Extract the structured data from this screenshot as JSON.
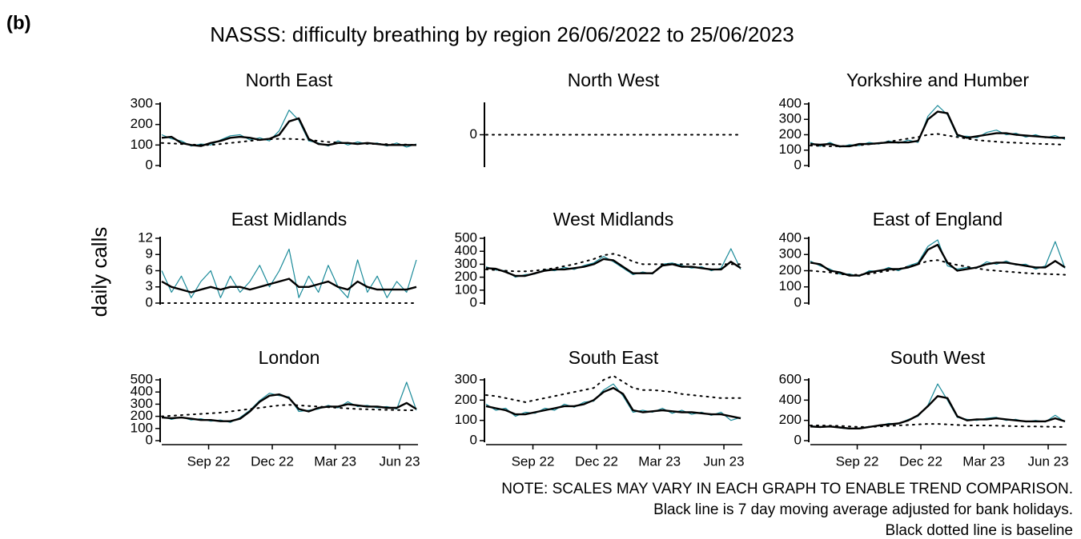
{
  "label": "(b)",
  "chart_data": {
    "type": "line",
    "title": "NASSS: difficulty breathing by region 26/06/2022 to 25/06/2023",
    "y_label": "daily calls",
    "x": [
      0,
      14,
      28,
      42,
      56,
      70,
      84,
      98,
      112,
      126,
      140,
      154,
      168,
      182,
      196,
      210,
      224,
      238,
      252,
      266,
      280,
      294,
      308,
      322,
      336,
      350,
      364
    ],
    "xlim": [
      0,
      364
    ],
    "xticks": [
      {
        "value": 67,
        "label": "Sep 22"
      },
      {
        "value": 158,
        "label": "Dec 22"
      },
      {
        "value": 248,
        "label": "Mar 23"
      },
      {
        "value": 340,
        "label": "Jun 23"
      }
    ],
    "panels": [
      {
        "title": "North East",
        "ylim": [
          0,
          300
        ],
        "yticks": [
          0,
          100,
          200,
          300
        ],
        "series": [
          {
            "color": "#1a8a99",
            "line_width": 1.2,
            "values": [
              150,
              130,
              120,
              95,
              105,
              100,
              125,
              145,
              150,
              125,
              135,
              120,
              170,
              270,
              220,
              120,
              110,
              95,
              120,
              100,
              115,
              105,
              110,
              95,
              110,
              90,
              105
            ]
          },
          {
            "color": "#000000",
            "line_width": 2.4,
            "values": [
              135,
              140,
              110,
              100,
              95,
              110,
              120,
              135,
              140,
              135,
              125,
              130,
              150,
              215,
              230,
              130,
              105,
              100,
              110,
              110,
              105,
              110,
              105,
              100,
              100,
              100,
              100
            ]
          },
          {
            "color": "#000000",
            "line_width": 2,
            "dashed": true,
            "values": [
              110,
              108,
              105,
              102,
              100,
              100,
              105,
              110,
              115,
              120,
              125,
              128,
              130,
              130,
              128,
              125,
              120,
              115,
              112,
              110,
              108,
              106,
              105,
              104,
              103,
              102,
              100
            ]
          }
        ]
      },
      {
        "title": "North West",
        "ylim": [
          -1,
          1
        ],
        "yticks": [
          0
        ],
        "series": [
          {
            "color": "#000000",
            "line_width": 2,
            "dashed": true,
            "values": [
              0,
              0,
              0,
              0,
              0,
              0,
              0,
              0,
              0,
              0,
              0,
              0,
              0,
              0,
              0,
              0,
              0,
              0,
              0,
              0,
              0,
              0,
              0,
              0,
              0,
              0,
              0
            ]
          }
        ]
      },
      {
        "title": "Yorkshire and Humber",
        "ylim": [
          0,
          400
        ],
        "yticks": [
          0,
          100,
          200,
          300,
          400
        ],
        "series": [
          {
            "color": "#1a8a99",
            "line_width": 1.2,
            "values": [
              150,
              125,
              150,
              120,
              135,
              130,
              150,
              140,
              160,
              145,
              165,
              150,
              320,
              390,
              330,
              190,
              190,
              180,
              215,
              230,
              200,
              210,
              185,
              200,
              180,
              195,
              170
            ]
          },
          {
            "color": "#000000",
            "line_width": 2.4,
            "values": [
              140,
              135,
              140,
              125,
              125,
              140,
              140,
              145,
              150,
              150,
              150,
              160,
              300,
              350,
              340,
              200,
              180,
              190,
              200,
              210,
              210,
              200,
              195,
              190,
              185,
              180,
              180
            ]
          },
          {
            "color": "#000000",
            "line_width": 2,
            "dashed": true,
            "values": [
              130,
              128,
              125,
              125,
              128,
              132,
              138,
              145,
              155,
              165,
              175,
              185,
              200,
              205,
              195,
              185,
              175,
              165,
              160,
              155,
              150,
              148,
              145,
              142,
              140,
              138,
              135
            ]
          }
        ]
      },
      {
        "title": "East Midlands",
        "ylim": [
          0,
          12
        ],
        "yticks": [
          0,
          3,
          6,
          9,
          12
        ],
        "series": [
          {
            "color": "#1a8a99",
            "line_width": 1.2,
            "values": [
              6,
              2,
              5,
              1,
              4,
              6,
              1,
              5,
              2,
              4,
              7,
              3,
              6,
              10,
              1,
              5,
              2,
              7,
              3,
              1,
              8,
              2,
              5,
              1,
              4,
              2,
              8
            ]
          },
          {
            "color": "#000000",
            "line_width": 2.4,
            "values": [
              4,
              3,
              2.5,
              2,
              2.5,
              3,
              2.5,
              3,
              3,
              2.5,
              3,
              3.5,
              4,
              4.5,
              3,
              3,
              3.5,
              4,
              3,
              2.5,
              4,
              3,
              2.5,
              2.5,
              2.5,
              2.5,
              3
            ]
          },
          {
            "color": "#000000",
            "line_width": 2,
            "dashed": true,
            "values": [
              0,
              0,
              0,
              0,
              0,
              0,
              0,
              0,
              0,
              0,
              0,
              0,
              0,
              0,
              0,
              0,
              0,
              0,
              0,
              0,
              0,
              0,
              0,
              0,
              0,
              0,
              0
            ]
          }
        ]
      },
      {
        "title": "West Midlands",
        "ylim": [
          0,
          500
        ],
        "yticks": [
          0,
          100,
          200,
          300,
          400,
          500
        ],
        "series": [
          {
            "color": "#1a8a99",
            "line_width": 1.2,
            "values": [
              280,
              255,
              250,
              200,
              220,
              225,
              260,
              250,
              275,
              260,
              290,
              310,
              360,
              320,
              270,
              220,
              240,
              225,
              300,
              310,
              290,
              270,
              280,
              250,
              270,
              420,
              260
            ]
          },
          {
            "color": "#000000",
            "line_width": 2.4,
            "values": [
              270,
              265,
              240,
              210,
              210,
              230,
              250,
              260,
              260,
              270,
              280,
              300,
              340,
              330,
              280,
              230,
              230,
              230,
              290,
              300,
              280,
              280,
              270,
              260,
              260,
              320,
              270
            ]
          },
          {
            "color": "#000000",
            "line_width": 2,
            "dashed": true,
            "values": [
              260,
              255,
              250,
              245,
              245,
              250,
              260,
              270,
              285,
              300,
              320,
              340,
              370,
              380,
              360,
              320,
              300,
              300,
              300,
              300,
              300,
              300,
              300,
              300,
              300,
              300,
              300
            ]
          }
        ]
      },
      {
        "title": "East of England",
        "ylim": [
          0,
          400
        ],
        "yticks": [
          0,
          100,
          200,
          300,
          400
        ],
        "series": [
          {
            "color": "#1a8a99",
            "line_width": 1.2,
            "values": [
              260,
              230,
              210,
              180,
              180,
              165,
              200,
              195,
              220,
              200,
              230,
              250,
              350,
              390,
              230,
              210,
              220,
              215,
              255,
              240,
              260,
              235,
              240,
              210,
              230,
              380,
              215
            ]
          },
          {
            "color": "#000000",
            "line_width": 2.4,
            "values": [
              250,
              240,
              200,
              190,
              170,
              170,
              190,
              200,
              210,
              210,
              220,
              240,
              330,
              360,
              250,
              200,
              210,
              220,
              240,
              250,
              250,
              240,
              230,
              220,
              220,
              260,
              220
            ]
          },
          {
            "color": "#000000",
            "line_width": 2,
            "dashed": true,
            "values": [
              200,
              195,
              190,
              180,
              175,
              175,
              180,
              190,
              200,
              210,
              225,
              240,
              260,
              265,
              250,
              235,
              225,
              215,
              205,
              200,
              195,
              190,
              185,
              182,
              180,
              178,
              175
            ]
          }
        ]
      },
      {
        "title": "London",
        "ylim": [
          0,
          500
        ],
        "yticks": [
          0,
          100,
          200,
          300,
          400,
          500
        ],
        "series": [
          {
            "color": "#1a8a99",
            "line_width": 1.2,
            "values": [
              200,
              175,
              195,
              170,
              180,
              160,
              170,
              150,
              190,
              250,
              330,
              390,
              370,
              360,
              240,
              250,
              260,
              290,
              270,
              320,
              280,
              290,
              270,
              280,
              260,
              480,
              250
            ]
          },
          {
            "color": "#000000",
            "line_width": 2.4,
            "values": [
              190,
              185,
              190,
              180,
              170,
              170,
              160,
              160,
              180,
              240,
              320,
              370,
              380,
              350,
              260,
              240,
              270,
              280,
              280,
              300,
              290,
              280,
              280,
              270,
              270,
              310,
              260
            ]
          },
          {
            "color": "#000000",
            "line_width": 2,
            "dashed": true,
            "values": [
              200,
              205,
              210,
              215,
              220,
              225,
              230,
              240,
              250,
              260,
              270,
              280,
              290,
              295,
              290,
              285,
              280,
              275,
              270,
              265,
              260,
              258,
              255,
              253,
              252,
              250,
              250
            ]
          }
        ]
      },
      {
        "title": "South East",
        "ylim": [
          0,
          300
        ],
        "yticks": [
          0,
          100,
          200,
          300
        ],
        "series": [
          {
            "color": "#1a8a99",
            "line_width": 1.2,
            "values": [
              180,
              150,
              160,
              120,
              140,
              135,
              160,
              150,
              180,
              165,
              190,
              195,
              250,
              280,
              220,
              140,
              150,
              140,
              160,
              135,
              150,
              130,
              140,
              125,
              140,
              100,
              115
            ]
          },
          {
            "color": "#000000",
            "line_width": 2.4,
            "values": [
              170,
              160,
              150,
              130,
              130,
              140,
              150,
              160,
              170,
              170,
              180,
              200,
              240,
              260,
              230,
              150,
              140,
              145,
              150,
              145,
              140,
              140,
              135,
              130,
              130,
              120,
              110
            ]
          },
          {
            "color": "#000000",
            "line_width": 2,
            "dashed": true,
            "values": [
              225,
              220,
              210,
              200,
              190,
              200,
              210,
              220,
              230,
              240,
              250,
              260,
              300,
              320,
              290,
              260,
              250,
              250,
              245,
              240,
              230,
              225,
              220,
              215,
              210,
              210,
              210
            ]
          }
        ]
      },
      {
        "title": "South West",
        "ylim": [
          0,
          600
        ],
        "yticks": [
          0,
          200,
          400,
          600
        ],
        "series": [
          {
            "color": "#1a8a99",
            "line_width": 1.2,
            "values": [
              150,
              130,
              145,
              125,
              115,
              125,
              140,
              145,
              170,
              165,
              210,
              240,
              350,
              560,
              400,
              230,
              210,
              200,
              220,
              230,
              200,
              210,
              185,
              200,
              185,
              250,
              185
            ]
          },
          {
            "color": "#000000",
            "line_width": 2.4,
            "values": [
              140,
              135,
              140,
              130,
              120,
              120,
              135,
              150,
              160,
              170,
              200,
              250,
              340,
              440,
              420,
              240,
              200,
              210,
              210,
              220,
              210,
              200,
              190,
              190,
              190,
              220,
              190
            ]
          },
          {
            "color": "#000000",
            "line_width": 2,
            "dashed": true,
            "values": [
              150,
              150,
              148,
              145,
              140,
              135,
              135,
              140,
              145,
              150,
              155,
              160,
              165,
              165,
              160,
              155,
              150,
              150,
              150,
              148,
              145,
              142,
              140,
              140,
              138,
              136,
              135
            ]
          }
        ]
      }
    ]
  },
  "notes": [
    "NOTE: SCALES MAY VARY IN EACH GRAPH TO ENABLE TREND COMPARISON.",
    "Black line is 7 day moving average adjusted for bank holidays.",
    "Black dotted line is baseline"
  ]
}
